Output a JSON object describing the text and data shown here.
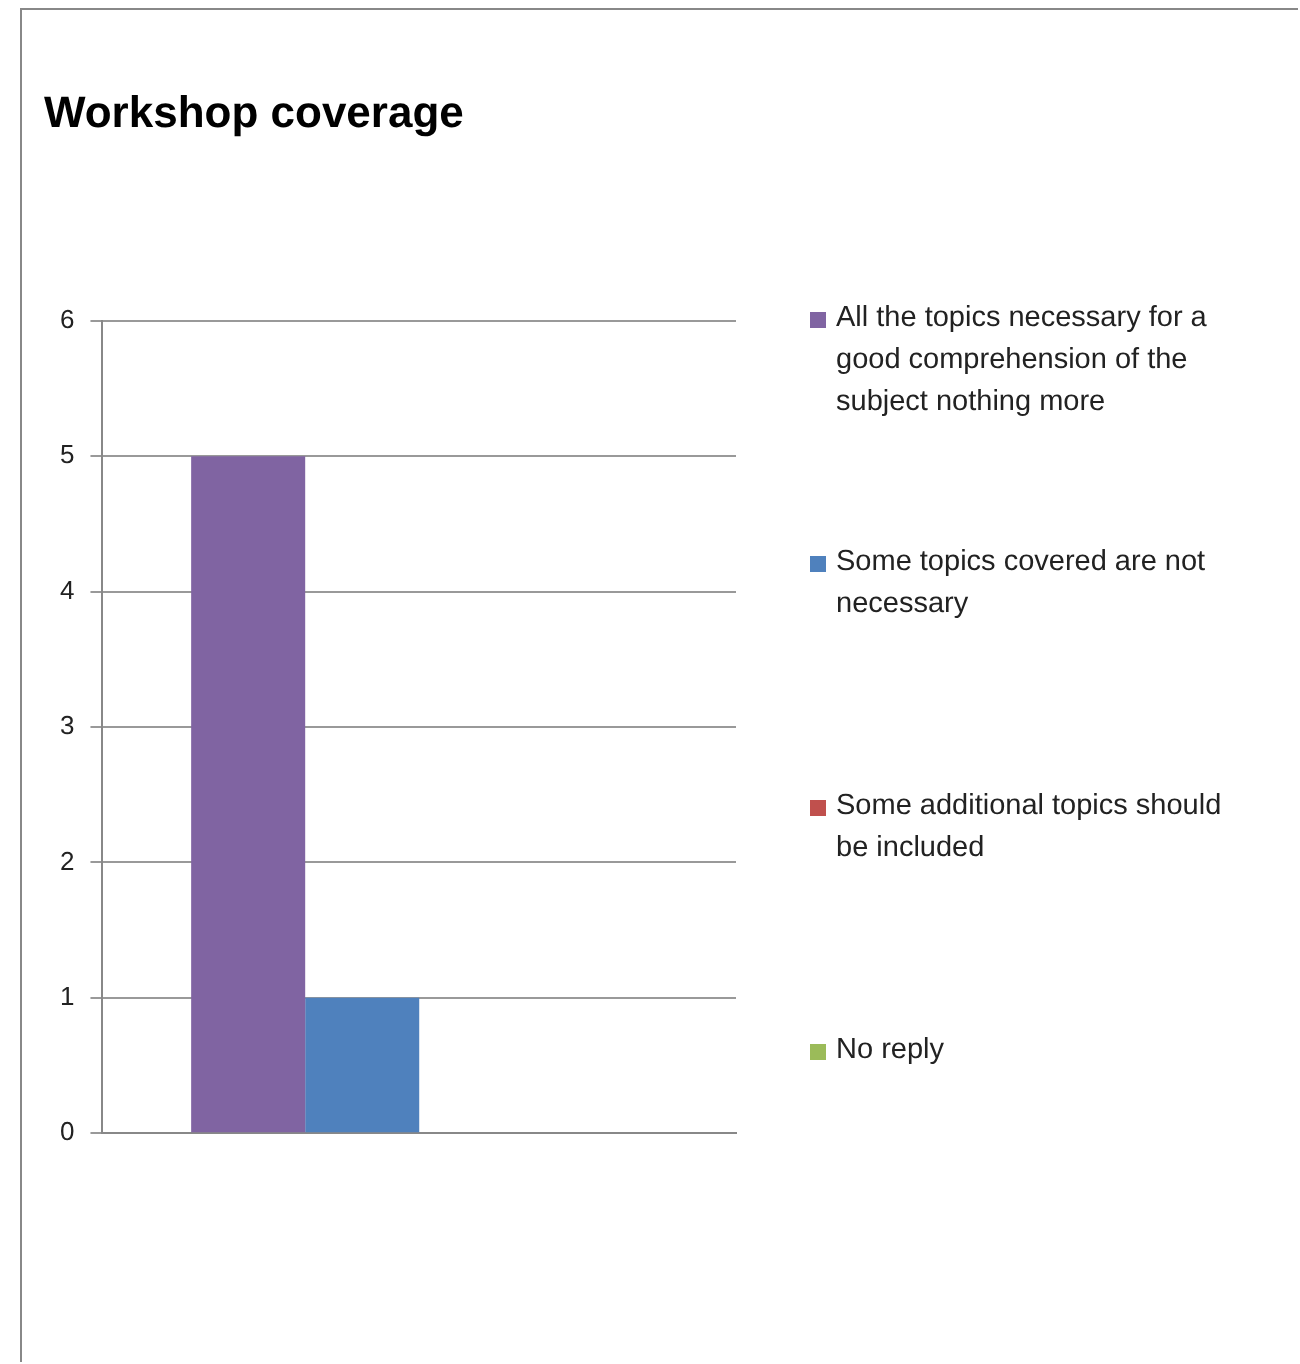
{
  "chart_data": {
    "type": "bar",
    "title": "Workshop coverage",
    "categories": [
      null
    ],
    "series": [
      {
        "name": "All the topics necessary for a good comprehension of the subject nothing more",
        "color": "#8064a2",
        "values": [
          5
        ]
      },
      {
        "name": "Some topics covered are not necessary",
        "color": "#4f81bd",
        "values": [
          1
        ]
      },
      {
        "name": "Some additional topics should be included",
        "color": "#c0504d",
        "values": [
          0
        ]
      },
      {
        "name": "No reply",
        "color": "#9bbb59",
        "values": [
          0
        ]
      }
    ],
    "ylim": [
      0,
      6
    ],
    "yticks": [
      0,
      1,
      2,
      3,
      4,
      5,
      6
    ],
    "grid": "y",
    "legend": "right"
  }
}
